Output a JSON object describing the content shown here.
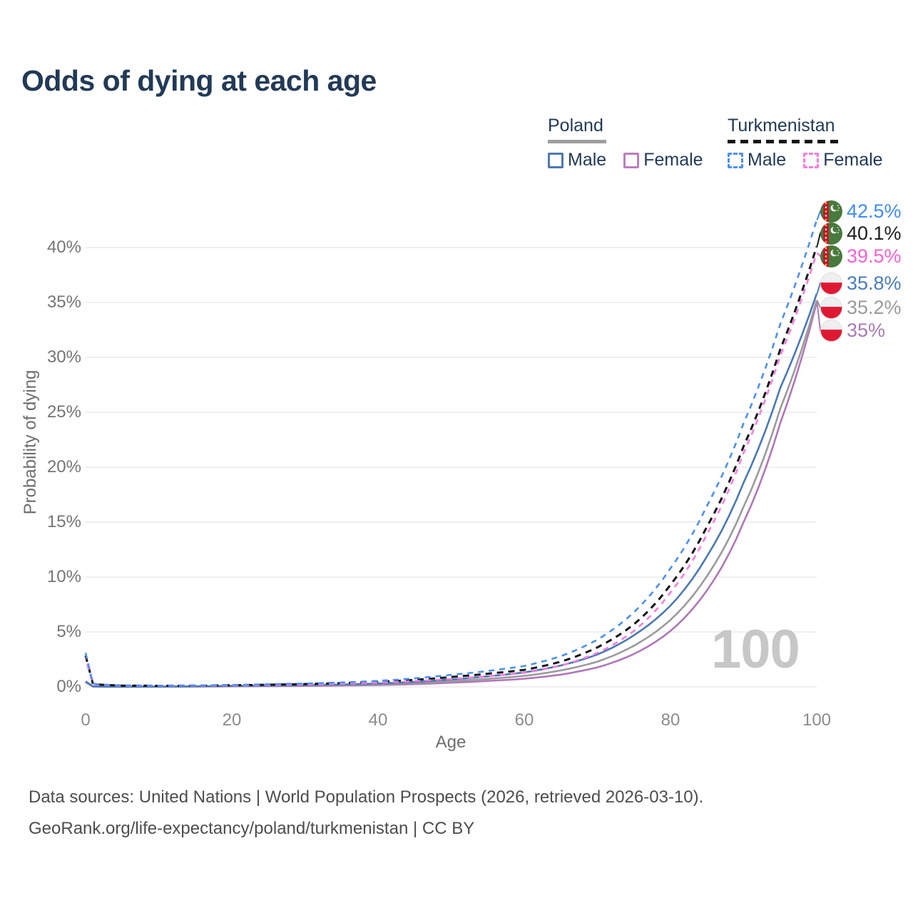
{
  "title": "Odds of dying at each age",
  "legend": {
    "groups": [
      {
        "name": "Poland",
        "line_style": "solid",
        "line_color": "#9e9e9e",
        "items": [
          {
            "label": "Male",
            "color": "#4b79b4"
          },
          {
            "label": "Female",
            "color": "#bd7ec2"
          }
        ]
      },
      {
        "name": "Turkmenistan",
        "line_style": "dashed",
        "line_color": "#161616",
        "items": [
          {
            "label": "Male",
            "color": "#4b90f2"
          },
          {
            "label": "Female",
            "color": "#f97be3"
          }
        ]
      }
    ]
  },
  "chart_data": {
    "type": "line",
    "title": "Odds of dying at each age",
    "xlabel": "Age",
    "ylabel": "Probability of dying",
    "xlim": [
      0,
      100
    ],
    "ylim_percent": [
      0,
      44
    ],
    "grid": "horizontal",
    "x_tick_labels": [
      "0",
      "20",
      "40",
      "60",
      "80",
      "100"
    ],
    "x_tick_values": [
      0,
      20,
      40,
      60,
      80,
      100
    ],
    "y_tick_labels": [
      "0%",
      "5%",
      "10%",
      "15%",
      "20%",
      "25%",
      "30%",
      "35%",
      "40%"
    ],
    "y_tick_values": [
      0,
      5,
      10,
      15,
      20,
      25,
      30,
      35,
      40
    ],
    "watermark": "100",
    "ages": [
      0,
      1,
      2,
      5,
      10,
      15,
      20,
      25,
      30,
      35,
      40,
      45,
      50,
      55,
      60,
      65,
      70,
      75,
      80,
      85,
      90,
      95,
      100
    ],
    "series": [
      {
        "name": "Turkmenistan Male",
        "color": "#4b90f2",
        "dash": "8 7",
        "width": 2.6,
        "values_percent": [
          3.1,
          0.3,
          0.22,
          0.14,
          0.11,
          0.13,
          0.18,
          0.24,
          0.31,
          0.4,
          0.55,
          0.78,
          1.1,
          1.45,
          1.9,
          2.8,
          4.3,
          6.8,
          10.8,
          16.5,
          24.0,
          33.0,
          42.5
        ]
      },
      {
        "name": "Turkmenistan (both sexes)",
        "color": "#161616",
        "dash": "9 7",
        "width": 3,
        "values_percent": [
          2.85,
          0.27,
          0.2,
          0.12,
          0.1,
          0.11,
          0.15,
          0.2,
          0.26,
          0.34,
          0.46,
          0.64,
          0.9,
          1.2,
          1.55,
          2.3,
          3.6,
          5.7,
          9.3,
          14.6,
          21.9,
          30.7,
          40.1
        ]
      },
      {
        "name": "Turkmenistan Female",
        "color": "#f97be3",
        "dash": "8 7",
        "width": 2.6,
        "values_percent": [
          2.55,
          0.24,
          0.18,
          0.11,
          0.09,
          0.1,
          0.13,
          0.17,
          0.21,
          0.28,
          0.38,
          0.53,
          0.73,
          0.98,
          1.28,
          1.95,
          3.1,
          5.1,
          8.6,
          13.9,
          21.3,
          30.1,
          39.5
        ]
      },
      {
        "name": "Poland Male",
        "color": "#4b79b4",
        "dash": null,
        "width": 2.6,
        "values_percent": [
          0.5,
          0.045,
          0.025,
          0.018,
          0.022,
          0.05,
          0.09,
          0.12,
          0.16,
          0.22,
          0.31,
          0.46,
          0.68,
          0.96,
          1.32,
          1.95,
          2.95,
          4.7,
          7.4,
          11.9,
          18.6,
          27.2,
          35.8
        ]
      },
      {
        "name": "Poland (both sexes)",
        "color": "#9b9b9b",
        "dash": null,
        "width": 2.6,
        "values_percent": [
          0.46,
          0.04,
          0.02,
          0.015,
          0.018,
          0.04,
          0.07,
          0.095,
          0.125,
          0.17,
          0.24,
          0.35,
          0.52,
          0.73,
          1.0,
          1.5,
          2.3,
          3.75,
          6.1,
          10.1,
          16.4,
          25.3,
          35.2
        ]
      },
      {
        "name": "Poland Female",
        "color": "#b077b8",
        "dash": null,
        "width": 2.6,
        "values_percent": [
          0.42,
          0.032,
          0.018,
          0.012,
          0.015,
          0.03,
          0.05,
          0.068,
          0.09,
          0.12,
          0.17,
          0.25,
          0.38,
          0.54,
          0.74,
          1.12,
          1.78,
          3.0,
          5.1,
          8.8,
          15.0,
          24.0,
          35.0
        ]
      }
    ],
    "end_labels": [
      {
        "text": "42.5%",
        "value_percent": 42.5,
        "color": "#3f8df2",
        "flag": "turkmenistan"
      },
      {
        "text": "40.1%",
        "value_percent": 40.1,
        "color": "#1e1e1e",
        "flag": "turkmenistan"
      },
      {
        "text": "39.5%",
        "value_percent": 39.5,
        "color": "#fa5eda",
        "flag": "turkmenistan"
      },
      {
        "text": "35.8%",
        "value_percent": 35.8,
        "color": "#4a7dbc",
        "flag": "poland"
      },
      {
        "text": "35.2%",
        "value_percent": 35.2,
        "color": "#9a9a9a",
        "flag": "poland"
      },
      {
        "text": "35%",
        "value_percent": 35.0,
        "color": "#a77bb5",
        "flag": "poland"
      }
    ]
  },
  "footer": {
    "line1": "Data sources: United Nations | World Population Prospects (2026, retrieved 2026-03-10).",
    "line2": "GeoRank.org/life-expectancy/poland/turkmenistan | CC BY"
  }
}
